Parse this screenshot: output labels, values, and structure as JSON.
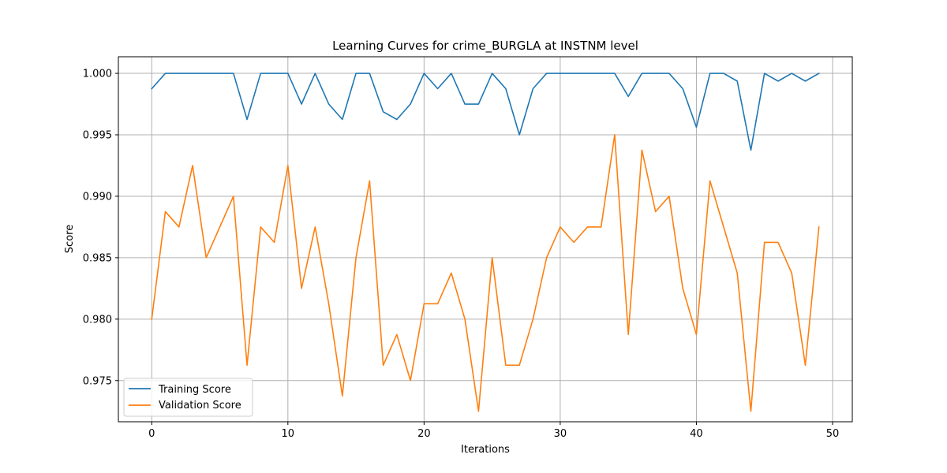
{
  "chart_data": {
    "type": "line",
    "title": "Learning Curves for crime_BURGLA at INSTNM level",
    "xlabel": "Iterations",
    "ylabel": "Score",
    "xlim": [
      -2.45,
      51.45
    ],
    "ylim": [
      0.97165,
      1.00135
    ],
    "xticks": [
      0,
      10,
      20,
      30,
      40,
      50
    ],
    "yticks": [
      0.975,
      0.98,
      0.985,
      0.99,
      0.995,
      1.0
    ],
    "xtick_labels": [
      "0",
      "10",
      "20",
      "30",
      "40",
      "50"
    ],
    "ytick_labels": [
      "0.975",
      "0.980",
      "0.985",
      "0.990",
      "0.995",
      "1.000"
    ],
    "grid": true,
    "legend_position": "lower-left",
    "x": [
      0,
      1,
      2,
      3,
      4,
      5,
      6,
      7,
      8,
      9,
      10,
      11,
      12,
      13,
      14,
      15,
      16,
      17,
      18,
      19,
      20,
      21,
      22,
      23,
      24,
      25,
      26,
      27,
      28,
      29,
      30,
      31,
      32,
      33,
      34,
      35,
      36,
      37,
      38,
      39,
      40,
      41,
      42,
      43,
      44,
      45,
      46,
      47,
      48,
      49
    ],
    "series": [
      {
        "name": "Training Score",
        "color": "#1f77b4",
        "values": [
          0.99875,
          1.0,
          1.0,
          1.0,
          1.0,
          1.0,
          1.0,
          0.99625,
          1.0,
          1.0,
          1.0,
          0.9975,
          1.0,
          0.9975,
          0.99625,
          1.0,
          1.0,
          0.99687,
          0.99625,
          0.9975,
          1.0,
          0.99875,
          1.0,
          0.9975,
          0.9975,
          1.0,
          0.99875,
          0.995,
          0.99875,
          1.0,
          1.0,
          1.0,
          1.0,
          1.0,
          1.0,
          0.99812,
          1.0,
          1.0,
          1.0,
          0.99875,
          0.99562,
          1.0,
          1.0,
          0.99937,
          0.99375,
          1.0,
          0.99937,
          1.0,
          0.99937,
          1.0
        ]
      },
      {
        "name": "Validation Score",
        "color": "#ff7f0e",
        "values": [
          0.98,
          0.98875,
          0.9875,
          0.9925,
          0.985,
          0.9875,
          0.99,
          0.97625,
          0.9875,
          0.98625,
          0.9925,
          0.9825,
          0.9875,
          0.98125,
          0.97375,
          0.985,
          0.99125,
          0.97625,
          0.97875,
          0.975,
          0.98125,
          0.98125,
          0.98375,
          0.98,
          0.9725,
          0.985,
          0.97625,
          0.97625,
          0.98,
          0.985,
          0.9875,
          0.98625,
          0.9875,
          0.9875,
          0.995,
          0.97875,
          0.99375,
          0.98875,
          0.99,
          0.9825,
          0.97875,
          0.99125,
          0.9875,
          0.98375,
          0.9725,
          0.98625,
          0.98625,
          0.98375,
          0.97625,
          0.9875
        ]
      }
    ]
  }
}
